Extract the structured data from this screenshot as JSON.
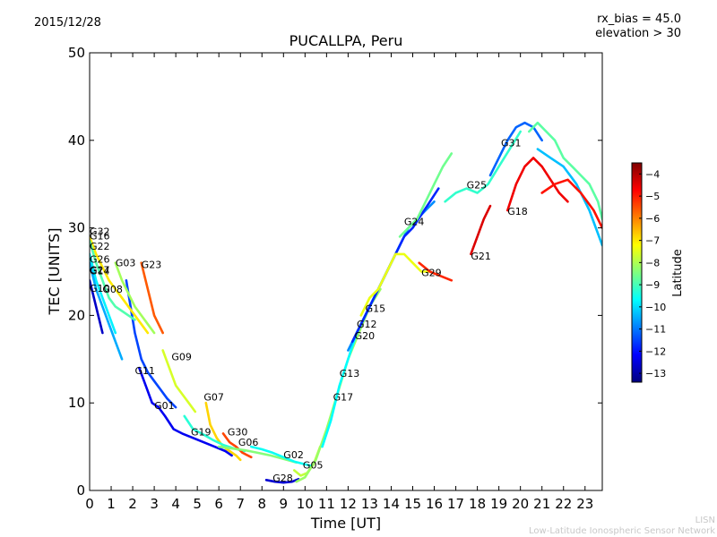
{
  "header": {
    "date": "2015/12/28",
    "rx_bias": "rx_bias = 45.0",
    "elevation": "elevation > 30"
  },
  "footer": {
    "line1": "LISN",
    "line2": "Low-Latitude Ionospheric Sensor Network"
  },
  "chart_data": {
    "type": "scatter",
    "title": "PUCALLPA, Peru",
    "xlabel": "Time [UT]",
    "ylabel": "TEC [UNITS]",
    "xlim": [
      0,
      23.8
    ],
    "ylim": [
      0,
      50
    ],
    "xticks": [
      0,
      1,
      2,
      3,
      4,
      5,
      6,
      7,
      8,
      9,
      10,
      11,
      12,
      13,
      14,
      15,
      16,
      17,
      18,
      19,
      20,
      21,
      22,
      23
    ],
    "yticks": [
      0,
      10,
      20,
      30,
      40,
      50
    ],
    "grid": false,
    "colorbar": {
      "label": "Latitude",
      "min": -13.4,
      "max": -3.5,
      "ticks": [
        -4,
        -5,
        -6,
        -7,
        -8,
        -9,
        -10,
        -11,
        -12,
        -13
      ],
      "colormap": [
        "#00007f",
        "#0000ff",
        "#007fff",
        "#00ffff",
        "#7fff7f",
        "#ffff00",
        "#ff7f00",
        "#ff0000",
        "#7f0000"
      ]
    },
    "satellite_labels": [
      {
        "name": "G32",
        "x": 0.0,
        "y": 29.2
      },
      {
        "name": "G16",
        "x": 0.0,
        "y": 28.7
      },
      {
        "name": "G22",
        "x": 0.0,
        "y": 27.5
      },
      {
        "name": "G26",
        "x": 0.0,
        "y": 26.0
      },
      {
        "name": "G03",
        "x": 1.2,
        "y": 25.6
      },
      {
        "name": "G23",
        "x": 2.4,
        "y": 25.4
      },
      {
        "name": "G27",
        "x": 0.0,
        "y": 24.8
      },
      {
        "name": "G14",
        "x": 0.0,
        "y": 24.7
      },
      {
        "name": "G10",
        "x": 0.0,
        "y": 22.7
      },
      {
        "name": "G08",
        "x": 0.6,
        "y": 22.6
      },
      {
        "name": "G11",
        "x": 2.1,
        "y": 13.3
      },
      {
        "name": "G09",
        "x": 3.8,
        "y": 14.9
      },
      {
        "name": "G07",
        "x": 5.3,
        "y": 10.3
      },
      {
        "name": "G01",
        "x": 3.0,
        "y": 9.3
      },
      {
        "name": "G19",
        "x": 4.7,
        "y": 6.3
      },
      {
        "name": "G30",
        "x": 6.4,
        "y": 6.3
      },
      {
        "name": "G06",
        "x": 6.9,
        "y": 5.1
      },
      {
        "name": "G02",
        "x": 9.0,
        "y": 3.7
      },
      {
        "name": "G05",
        "x": 9.9,
        "y": 2.5
      },
      {
        "name": "G28",
        "x": 8.5,
        "y": 1.0
      },
      {
        "name": "G17",
        "x": 11.3,
        "y": 10.3
      },
      {
        "name": "G13",
        "x": 11.6,
        "y": 13.0
      },
      {
        "name": "G20",
        "x": 12.3,
        "y": 17.3
      },
      {
        "name": "G12",
        "x": 12.4,
        "y": 18.6
      },
      {
        "name": "G15",
        "x": 12.8,
        "y": 20.4
      },
      {
        "name": "G24",
        "x": 14.6,
        "y": 30.3
      },
      {
        "name": "G29",
        "x": 15.4,
        "y": 24.5
      },
      {
        "name": "G25",
        "x": 17.5,
        "y": 34.5
      },
      {
        "name": "G21",
        "x": 17.7,
        "y": 26.4
      },
      {
        "name": "G31",
        "x": 19.1,
        "y": 39.3
      },
      {
        "name": "G18",
        "x": 19.4,
        "y": 31.5
      }
    ],
    "series": [
      {
        "name": "G01",
        "lat": -12.3,
        "x": [
          2.3,
          2.6,
          2.9,
          3.2,
          3.5,
          3.9,
          4.3,
          4.8,
          5.3,
          5.8,
          6.3,
          6.6
        ],
        "y": [
          14,
          12,
          10,
          9.5,
          8.5,
          7,
          6.5,
          6,
          5.5,
          5,
          4.5,
          4
        ]
      },
      {
        "name": "G11",
        "lat": -11.5,
        "x": [
          1.7,
          1.9,
          2.1,
          2.4,
          2.7,
          3.0,
          3.3,
          3.6,
          4.0
        ],
        "y": [
          24,
          21,
          18,
          15,
          13.5,
          12.5,
          11.5,
          10.5,
          9.5
        ]
      },
      {
        "name": "G07",
        "lat": -6.8,
        "x": [
          5.4,
          5.6,
          5.9,
          6.2,
          6.5,
          6.8,
          7.0
        ],
        "y": [
          10,
          7.5,
          6,
          5,
          4.5,
          4,
          3.5
        ]
      },
      {
        "name": "G09",
        "lat": -7.6,
        "x": [
          3.4,
          3.7,
          4.0,
          4.3,
          4.6,
          4.9
        ],
        "y": [
          16,
          14,
          12,
          11,
          10,
          9
        ]
      },
      {
        "name": "G19",
        "lat": -9.3,
        "x": [
          4.4,
          4.8,
          5.2,
          5.7,
          6.2,
          6.7,
          7.2
        ],
        "y": [
          8.5,
          7,
          6.5,
          5.8,
          5.2,
          4.8,
          4.5
        ]
      },
      {
        "name": "G30",
        "lat": -5.4,
        "x": [
          6.2,
          6.5,
          6.8,
          7.1,
          7.5
        ],
        "y": [
          6.5,
          5.5,
          5,
          4.3,
          3.8
        ]
      },
      {
        "name": "G06",
        "lat": -8.4,
        "x": [
          6.0,
          6.6,
          7.2,
          7.8,
          8.4,
          9.0,
          9.6
        ],
        "y": [
          5,
          4.8,
          4.6,
          4.3,
          4,
          3.6,
          3.2
        ]
      },
      {
        "name": "G02",
        "lat": -9.6,
        "x": [
          7.5,
          8.0,
          8.5,
          9.0,
          9.5,
          10.0,
          10.3
        ],
        "y": [
          5,
          4.7,
          4.3,
          3.8,
          3.3,
          3,
          2.8
        ]
      },
      {
        "name": "G05",
        "lat": -7.8,
        "x": [
          9.5,
          9.8,
          10.1,
          10.4,
          10.7
        ],
        "y": [
          2.3,
          1.7,
          2,
          3,
          5
        ]
      },
      {
        "name": "G28",
        "lat": -12.6,
        "x": [
          8.2,
          8.6,
          9.0,
          9.4,
          9.7
        ],
        "y": [
          1.2,
          1,
          0.9,
          1,
          1.3
        ]
      },
      {
        "name": "G17",
        "lat": -8.2,
        "x": [
          9.6,
          10.0,
          10.5,
          11.0,
          11.5,
          12.0,
          12.5,
          13.0,
          13.5
        ],
        "y": [
          1,
          1.5,
          3.5,
          7,
          11,
          15,
          18,
          21,
          23
        ]
      },
      {
        "name": "G13",
        "lat": -9.7,
        "x": [
          10.8,
          11.2,
          11.6,
          12.0,
          12.4,
          12.8,
          13.2,
          13.6,
          14.0,
          14.4
        ],
        "y": [
          5,
          8,
          12,
          15,
          18,
          20,
          22,
          24,
          26,
          28
        ]
      },
      {
        "name": "G20",
        "lat": -10.8,
        "x": [
          12.0,
          12.4,
          12.8,
          13.2,
          13.6,
          14.0,
          14.4,
          14.8,
          15.2,
          15.6,
          16.0
        ],
        "y": [
          16,
          18,
          20,
          22,
          24,
          26,
          28,
          30,
          31,
          32,
          33
        ]
      },
      {
        "name": "G12",
        "lat": -11.8,
        "x": [
          12.2,
          12.6,
          13.0,
          13.4,
          13.8,
          14.2,
          14.6,
          15.0,
          15.4,
          15.8,
          16.2
        ],
        "y": [
          17,
          19,
          21,
          23,
          25,
          27,
          29,
          30,
          31.5,
          33,
          34.5
        ]
      },
      {
        "name": "G15",
        "lat": -7.4,
        "x": [
          12.6,
          13.0,
          13.4,
          13.8,
          14.2,
          14.6,
          15.0,
          15.4,
          15.8
        ],
        "y": [
          20,
          22,
          23,
          25,
          27,
          27,
          26,
          25,
          25
        ]
      },
      {
        "name": "G24",
        "lat": -8.6,
        "x": [
          14.4,
          14.8,
          15.2,
          15.6,
          16.0,
          16.4,
          16.8
        ],
        "y": [
          29,
          30,
          31,
          33,
          35,
          37,
          38.5
        ]
      },
      {
        "name": "G29",
        "lat": -5.1,
        "x": [
          15.3,
          15.8,
          16.3,
          16.8
        ],
        "y": [
          26,
          25,
          24.5,
          24
        ]
      },
      {
        "name": "G25",
        "lat": -9.2,
        "x": [
          16.5,
          17.0,
          17.5,
          18.0,
          18.5,
          19.0,
          19.5,
          20.0
        ],
        "y": [
          33,
          34,
          34.5,
          34,
          35,
          37,
          39,
          41
        ]
      },
      {
        "name": "G21",
        "lat": -4.4,
        "x": [
          17.7,
          18.0,
          18.3,
          18.6
        ],
        "y": [
          27,
          29,
          31,
          32.5
        ]
      },
      {
        "name": "G31",
        "lat": -11.2,
        "x": [
          18.6,
          19.0,
          19.4,
          19.8,
          20.2,
          20.6,
          21.0
        ],
        "y": [
          36,
          38,
          40,
          41.5,
          42,
          41.5,
          40
        ]
      },
      {
        "name": "G18",
        "lat": -4.6,
        "x": [
          19.4,
          19.8,
          20.2,
          20.6,
          21.0,
          21.4,
          21.8,
          22.2
        ],
        "y": [
          32,
          35,
          37,
          38,
          37,
          35.5,
          34,
          33
        ]
      },
      {
        "name": "G08",
        "lat": -8.8,
        "x": [
          20.4,
          20.8,
          21.2,
          21.6,
          22.0,
          22.4,
          22.8,
          23.2,
          23.6,
          23.8
        ],
        "y": [
          41,
          42,
          41,
          40,
          38,
          37,
          36,
          35,
          33,
          31
        ]
      },
      {
        "name": "G10",
        "lat": -10.3,
        "x": [
          20.8,
          21.4,
          22.0,
          22.6,
          23.2,
          23.8
        ],
        "y": [
          39,
          38,
          37,
          35,
          32,
          28
        ]
      },
      {
        "name": "G27",
        "lat": -4.9,
        "x": [
          21.0,
          21.6,
          22.2,
          22.8,
          23.4,
          23.8
        ],
        "y": [
          34,
          35,
          35.5,
          34,
          32,
          30
        ]
      },
      {
        "name": "G32",
        "lat": -7.0,
        "x": [
          0.0,
          0.3,
          0.6,
          0.9,
          1.2,
          1.5,
          1.8,
          2.1,
          2.4,
          2.7
        ],
        "y": [
          29,
          27,
          25.5,
          24,
          23,
          22,
          21,
          20,
          19,
          18
        ]
      },
      {
        "name": "G16",
        "lat": -8.9,
        "x": [
          0.0,
          0.3,
          0.6,
          0.9,
          1.2,
          1.5,
          1.8,
          2.1
        ],
        "y": [
          28.5,
          26,
          24,
          22,
          21,
          20.5,
          20,
          19.5
        ]
      },
      {
        "name": "G22",
        "lat": -9.8,
        "x": [
          0.0,
          0.3,
          0.6,
          0.9,
          1.2
        ],
        "y": [
          27,
          24,
          22,
          20,
          18
        ]
      },
      {
        "name": "G26",
        "lat": -10.5,
        "x": [
          0.0,
          0.3,
          0.6,
          0.9,
          1.2,
          1.5
        ],
        "y": [
          26,
          23,
          21,
          19,
          17,
          15
        ]
      },
      {
        "name": "G03",
        "lat": -8.1,
        "x": [
          1.2,
          1.5,
          1.8,
          2.1,
          2.4,
          2.7,
          3.0
        ],
        "y": [
          26,
          24,
          22.5,
          21,
          20,
          19,
          18
        ]
      },
      {
        "name": "G23",
        "lat": -5.6,
        "x": [
          2.4,
          2.6,
          2.8,
          3.0,
          3.2,
          3.4
        ],
        "y": [
          26,
          24,
          22,
          20,
          19,
          18
        ]
      },
      {
        "name": "G14",
        "lat": -12.7,
        "x": [
          0.0,
          0.2,
          0.4,
          0.6
        ],
        "y": [
          24,
          22,
          20,
          18
        ]
      }
    ]
  }
}
